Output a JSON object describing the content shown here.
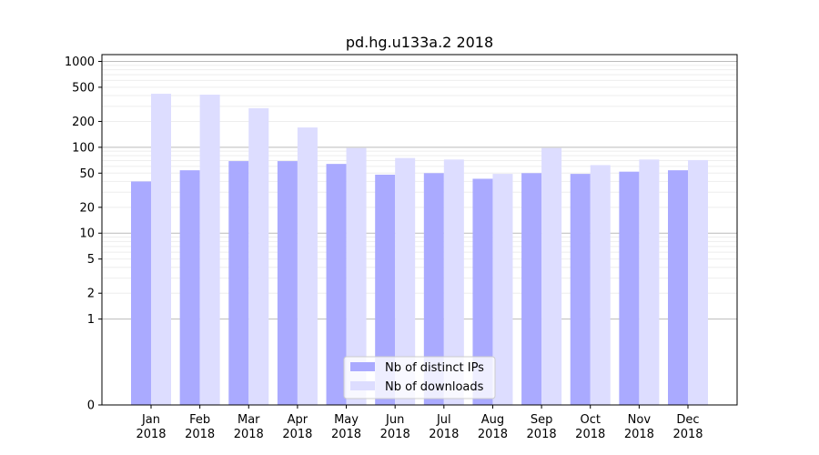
{
  "chart_data": {
    "type": "bar",
    "title": "pd.hg.u133a.2 2018",
    "xlabel": "",
    "ylabel": "",
    "yscale": "symlog",
    "ylim": [
      0,
      1200
    ],
    "y_ticks": [
      0,
      1,
      2,
      5,
      10,
      20,
      50,
      100,
      200,
      500,
      1000
    ],
    "y_tick_labels": [
      "0",
      "1",
      "2",
      "5",
      "10",
      "20",
      "50",
      "100",
      "200",
      "500",
      "1000"
    ],
    "grid": true,
    "legend_position": "bottom-center",
    "categories": [
      [
        "Jan",
        "2018"
      ],
      [
        "Feb",
        "2018"
      ],
      [
        "Mar",
        "2018"
      ],
      [
        "Apr",
        "2018"
      ],
      [
        "May",
        "2018"
      ],
      [
        "Jun",
        "2018"
      ],
      [
        "Jul",
        "2018"
      ],
      [
        "Aug",
        "2018"
      ],
      [
        "Sep",
        "2018"
      ],
      [
        "Oct",
        "2018"
      ],
      [
        "Nov",
        "2018"
      ],
      [
        "Dec",
        "2018"
      ]
    ],
    "series": [
      {
        "name": "Nb of distinct IPs",
        "color": "#aaaaff",
        "values": [
          40,
          54,
          69,
          69,
          64,
          48,
          50,
          43,
          50,
          49,
          52,
          54
        ]
      },
      {
        "name": "Nb of downloads",
        "color": "#ddddff",
        "values": [
          420,
          410,
          285,
          170,
          98,
          75,
          72,
          49,
          98,
          62,
          72,
          71
        ]
      }
    ]
  }
}
